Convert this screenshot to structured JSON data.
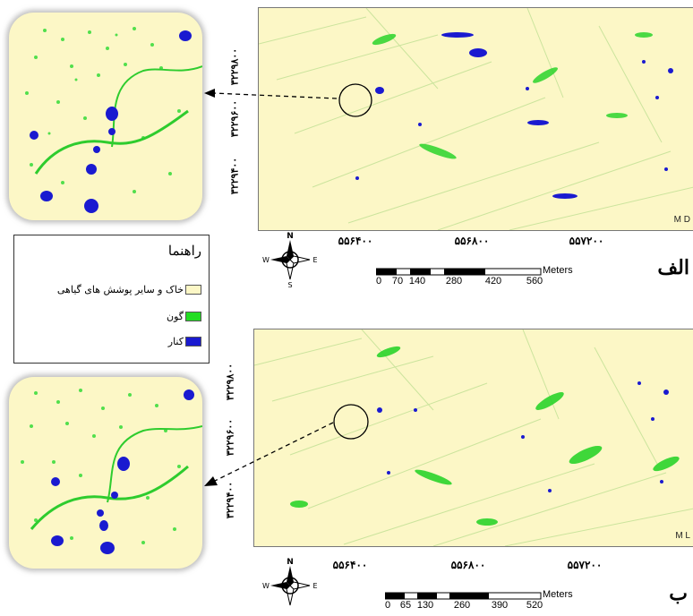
{
  "panels": [
    {
      "letter": "الف",
      "code": "M D",
      "y_ticks": [
        "۳۲۲۹۸۰۰",
        "۳۲۲۹۶۰۰",
        "۳۲۲۹۴۰۰"
      ],
      "x_ticks": [
        "۵۵۶۴۰۰",
        "۵۵۶۸۰۰",
        "۵۵۷۲۰۰"
      ],
      "scale_ticks": [
        "0",
        "70",
        "140",
        "280",
        "420",
        "560"
      ],
      "scale_unit": "Meters"
    },
    {
      "letter": "ب",
      "code": "M L",
      "y_ticks": [
        "۳۲۲۹۸۰۰",
        "۳۲۲۹۶۰۰",
        "۳۲۲۹۴۰۰"
      ],
      "x_ticks": [
        "۵۵۶۴۰۰",
        "۵۵۶۸۰۰",
        "۵۵۷۲۰۰"
      ],
      "scale_ticks": [
        "0",
        "65",
        "130",
        "260",
        "390",
        "520"
      ],
      "scale_unit": "Meters"
    }
  ],
  "compass": {
    "n": "N",
    "s": "S",
    "e": "E",
    "w": "W"
  },
  "legend": {
    "title": "راهنما",
    "items": [
      {
        "label": "خاک و سایر پوشش های گیاهی",
        "color": "#fcf7c6"
      },
      {
        "label": "گون",
        "color": "#22dd22"
      },
      {
        "label": "کنار",
        "color": "#1a1ad0"
      }
    ]
  },
  "colors": {
    "background_soil": "#fcf7c6",
    "gavan_green": "#22dd22",
    "konar_blue": "#1a1ad0"
  }
}
